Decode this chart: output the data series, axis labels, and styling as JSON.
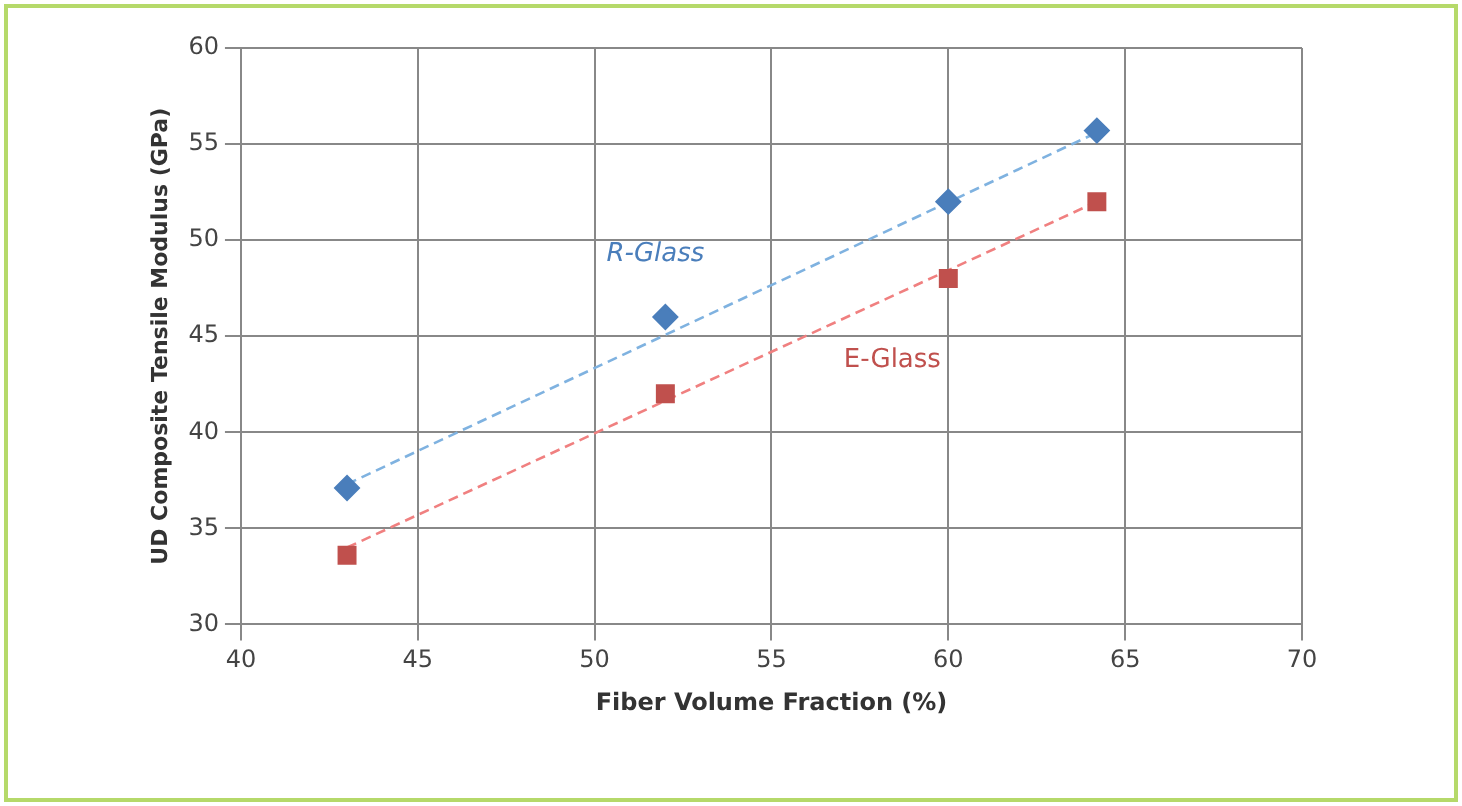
{
  "chart_data": {
    "type": "scatter",
    "xlabel": "Fiber Volume Fraction (%)",
    "ylabel": "UD Composite Tensile Modulus (GPa)",
    "xlim": [
      40,
      70
    ],
    "xticks": [
      40,
      45,
      50,
      55,
      60,
      65,
      70
    ],
    "ylim": [
      30,
      60
    ],
    "yticks": [
      30,
      35,
      40,
      45,
      50,
      55,
      60
    ],
    "grid": true,
    "legend": false,
    "series": [
      {
        "name": "R-Glass",
        "marker": "diamond",
        "color": "#4a7ebb",
        "x": [
          43,
          52,
          60,
          64.2
        ],
        "values": [
          37.1,
          46,
          52,
          55.7
        ]
      },
      {
        "name": "E-Glass",
        "marker": "square",
        "color": "#c0504d",
        "x": [
          43,
          52,
          60,
          64.2
        ],
        "values": [
          33.6,
          42,
          48,
          52
        ]
      },
      {
        "type": "line",
        "line_style": "dashed",
        "marker": "none",
        "color": "#7fb2e0",
        "x": [
          43,
          64.2
        ],
        "values": [
          37.3,
          55.6
        ]
      },
      {
        "type": "line",
        "line_style": "dashed",
        "marker": "none",
        "color": "#f08080",
        "x": [
          43,
          64.2
        ],
        "values": [
          34,
          52
        ]
      }
    ]
  }
}
